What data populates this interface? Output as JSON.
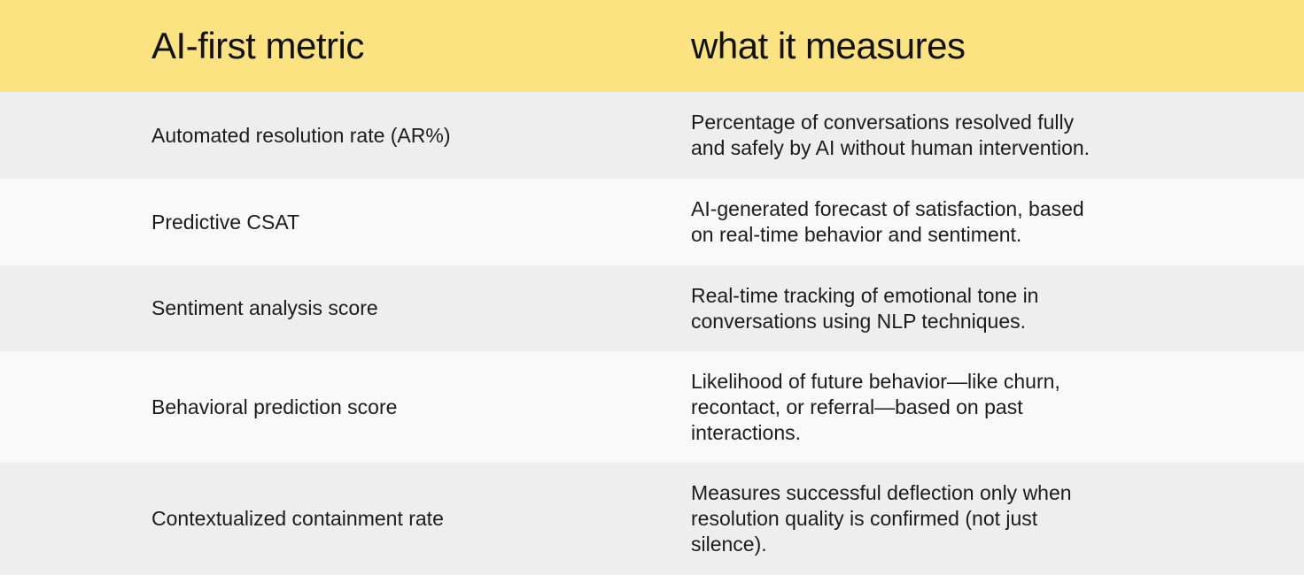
{
  "table": {
    "header": {
      "col1": "AI-first metric",
      "col2": "what it measures"
    },
    "rows": [
      {
        "metric": "Automated resolution rate (AR%)",
        "description": [
          "Percentage of conversations resolved fully",
          "and safely by AI without human intervention."
        ]
      },
      {
        "metric": "Predictive CSAT",
        "description": [
          "AI-generated forecast of satisfaction, based",
          "on real-time behavior and sentiment."
        ]
      },
      {
        "metric": "Sentiment analysis score",
        "description": [
          "Real-time tracking of emotional tone in",
          "conversations using NLP techniques."
        ]
      },
      {
        "metric": "Behavioral prediction score",
        "description": [
          "Likelihood of future behavior—like churn,",
          "recontact, or referral—based on past",
          "interactions."
        ]
      },
      {
        "metric": "Contextualized containment rate",
        "description": [
          "Measures successful deflection only when",
          "resolution quality is confirmed (not just",
          "silence)."
        ]
      }
    ],
    "colors": {
      "header_bg": "#FBE382",
      "row_gray_bg": "#EEEEEE",
      "row_light_bg": "#F9F9F9",
      "text": "#1C1C1C"
    }
  }
}
